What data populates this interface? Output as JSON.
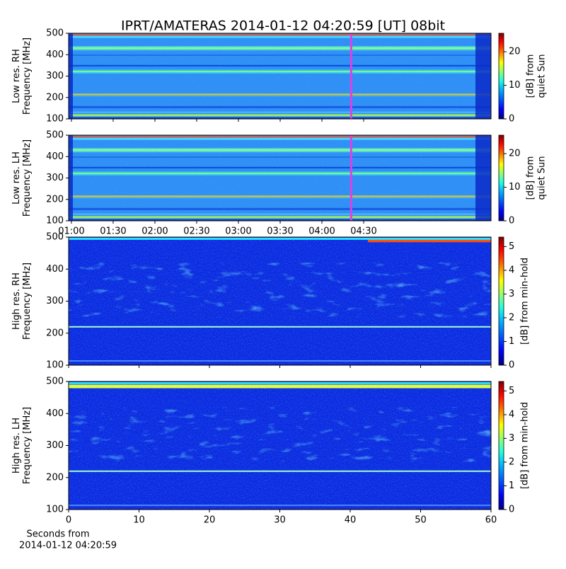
{
  "chart_data": [
    {
      "type": "heatmap",
      "title": "IPRT/AMATERAS 2014-01-12 04:20:59 [UT]   08bit",
      "ylabel": [
        "Low res. RH",
        "Frequency [MHz]"
      ],
      "ylim": [
        100,
        500
      ],
      "yticks": [
        100,
        200,
        300,
        400,
        500
      ],
      "xlim": [
        58,
        361.5
      ],
      "xticks": [
        60,
        90,
        120,
        150,
        180,
        210,
        240,
        270
      ],
      "cursor": 261,
      "cursor_color": "#e040e0",
      "colorbar": {
        "label": [
          "[dB] from",
          "quiet Sun"
        ],
        "clim": [
          0,
          25.5
        ],
        "ticks": [
          0,
          10,
          20
        ]
      }
    },
    {
      "type": "heatmap",
      "ylabel": [
        "Low res. LH",
        "Frequency [MHz]"
      ],
      "ylim": [
        100,
        500
      ],
      "yticks": [
        100,
        200,
        300,
        400,
        500
      ],
      "xlim": [
        58,
        361.5
      ],
      "xticks": [
        {
          "value": 60,
          "label": "01:00"
        },
        {
          "value": 90,
          "label": "01:30"
        },
        {
          "value": 120,
          "label": "02:00"
        },
        {
          "value": 150,
          "label": "02:30"
        },
        {
          "value": 180,
          "label": "03:00"
        },
        {
          "value": 210,
          "label": "03:30"
        },
        {
          "value": 240,
          "label": "04:00"
        },
        {
          "value": 270,
          "label": "04:30"
        }
      ],
      "cursor": 261,
      "cursor_color": "#e040e0",
      "colorbar": {
        "label": [
          "[dB] from",
          "quiet Sun"
        ],
        "clim": [
          0,
          25.5
        ],
        "ticks": [
          0,
          10,
          20
        ]
      }
    },
    {
      "type": "heatmap",
      "ylabel": [
        "High res. RH",
        "Frequency [MHz]"
      ],
      "ylim": [
        100,
        500
      ],
      "yticks": [
        100,
        200,
        300,
        400,
        500
      ],
      "xlim": [
        0,
        60
      ],
      "xticks": [
        0,
        10,
        20,
        30,
        40,
        50,
        60
      ],
      "colorbar": {
        "label": [
          "[dB] from min-hold"
        ],
        "clim": [
          0,
          5.4
        ],
        "ticks": [
          0,
          1,
          2,
          3,
          4,
          5
        ]
      }
    },
    {
      "type": "heatmap",
      "ylabel": [
        "High res. LH",
        "Frequency [MHz]"
      ],
      "ylim": [
        100,
        500
      ],
      "yticks": [
        100,
        200,
        300,
        400,
        500
      ],
      "xlim": [
        0,
        60
      ],
      "xticks": [
        0,
        10,
        20,
        30,
        40,
        50,
        60
      ],
      "xlabel": [
        "Seconds from",
        "2014-01-12 04:20:59"
      ],
      "colorbar": {
        "label": [
          "[dB] from min-hold"
        ],
        "clim": [
          0,
          5.4
        ],
        "ticks": [
          0,
          1,
          2,
          3,
          4,
          5
        ]
      }
    }
  ]
}
